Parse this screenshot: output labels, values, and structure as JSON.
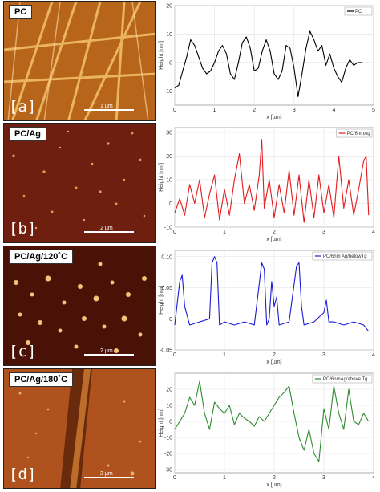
{
  "panels": [
    {
      "tag": "PC",
      "letter": "[a]",
      "scale_label": "1 µm",
      "afm_color": "#c0701f"
    },
    {
      "tag": "PC/Ag",
      "letter": "[b]",
      "scale_label": "2 µm",
      "afm_color": "#6e1f10"
    },
    {
      "tag": "PC/Ag/120˚C",
      "letter": "[c]",
      "scale_label": "2 µm",
      "afm_color": "#4a1207"
    },
    {
      "tag": "PC/Ag/180˚C",
      "letter": "[d]",
      "scale_label": "2 µm",
      "afm_color": "#b0521d"
    }
  ],
  "chart_data": [
    {
      "type": "line",
      "legend": "PC",
      "color": "#000000",
      "xlabel": "x [µm]",
      "ylabel": "Height [nm]",
      "xlim": [
        0,
        5
      ],
      "ylim": [
        -15,
        20
      ],
      "xticks": [
        0,
        1,
        2,
        3,
        4,
        5
      ],
      "yticks": [
        -10,
        0,
        10,
        20
      ],
      "x": [
        0,
        0.1,
        0.2,
        0.3,
        0.4,
        0.5,
        0.6,
        0.7,
        0.8,
        0.9,
        1.0,
        1.1,
        1.2,
        1.3,
        1.4,
        1.5,
        1.6,
        1.7,
        1.8,
        1.9,
        2.0,
        2.1,
        2.2,
        2.3,
        2.4,
        2.5,
        2.6,
        2.7,
        2.8,
        2.9,
        3.0,
        3.1,
        3.2,
        3.3,
        3.4,
        3.5,
        3.6,
        3.7,
        3.8,
        3.9,
        4.0,
        4.1,
        4.2,
        4.3,
        4.4,
        4.5,
        4.6,
        4.7
      ],
      "y": [
        -9,
        -8,
        -3,
        2,
        8,
        6,
        2,
        -2,
        -4,
        -3,
        0,
        4,
        6,
        3,
        -4,
        -6,
        0,
        7,
        9,
        5,
        -3,
        -2,
        4,
        8,
        4,
        -4,
        -6,
        -3,
        6,
        5,
        -2,
        -12,
        -4,
        5,
        11,
        8,
        4,
        6,
        -1,
        3,
        -2,
        -5,
        -7,
        -2,
        1,
        -1,
        0,
        0
      ]
    },
    {
      "type": "line",
      "legend": "PC/6nmAg",
      "color": "#e31a1c",
      "xlabel": "x [µm]",
      "ylabel": "Height [nm]",
      "xlim": [
        0,
        4
      ],
      "ylim": [
        -10,
        32
      ],
      "xticks": [
        0,
        1,
        2,
        3,
        4
      ],
      "yticks": [
        -10,
        0,
        10,
        20,
        30
      ],
      "x": [
        0,
        0.1,
        0.2,
        0.3,
        0.4,
        0.5,
        0.6,
        0.7,
        0.8,
        0.9,
        1.0,
        1.1,
        1.2,
        1.3,
        1.4,
        1.5,
        1.6,
        1.7,
        1.75,
        1.8,
        1.9,
        2.0,
        2.1,
        2.2,
        2.3,
        2.4,
        2.5,
        2.6,
        2.7,
        2.8,
        2.9,
        3.0,
        3.1,
        3.2,
        3.3,
        3.4,
        3.5,
        3.6,
        3.7,
        3.8,
        3.85,
        3.9
      ],
      "y": [
        -4,
        2,
        -5,
        8,
        0,
        10,
        -6,
        4,
        12,
        -7,
        6,
        -5,
        10,
        21,
        0,
        8,
        -3,
        12,
        27,
        -2,
        10,
        -6,
        8,
        -4,
        14,
        -5,
        12,
        -8,
        10,
        -6,
        12,
        -4,
        8,
        -6,
        20,
        -2,
        10,
        -5,
        6,
        18,
        20,
        -5
      ]
    },
    {
      "type": "line",
      "legend": "PC/6nm Ag/belowTg",
      "color": "#1a1ad6",
      "xlabel": "x [µm]",
      "ylabel": "Height [nm]",
      "xlim": [
        0,
        4
      ],
      "ylim": [
        -0.05,
        0.11
      ],
      "xticks": [
        0,
        1,
        2,
        3,
        4
      ],
      "yticks": [
        -0.05,
        0.0,
        0.05,
        0.1
      ],
      "x": [
        0,
        0.1,
        0.15,
        0.2,
        0.3,
        0.5,
        0.7,
        0.75,
        0.8,
        0.85,
        0.9,
        1.0,
        1.2,
        1.4,
        1.6,
        1.75,
        1.8,
        1.85,
        1.9,
        1.95,
        2.0,
        2.05,
        2.1,
        2.3,
        2.45,
        2.5,
        2.55,
        2.6,
        2.8,
        3.0,
        3.05,
        3.1,
        3.2,
        3.4,
        3.6,
        3.8,
        3.9
      ],
      "y": [
        -0.01,
        0.06,
        0.07,
        0.02,
        -0.01,
        -0.005,
        0.0,
        0.09,
        0.1,
        0.09,
        -0.01,
        -0.005,
        -0.01,
        -0.005,
        -0.01,
        0.09,
        0.08,
        -0.01,
        0.0,
        0.06,
        0.02,
        0.035,
        -0.01,
        -0.005,
        0.085,
        0.09,
        0.02,
        -0.01,
        -0.005,
        0.01,
        0.03,
        -0.005,
        -0.005,
        -0.01,
        -0.005,
        -0.01,
        -0.02
      ]
    },
    {
      "type": "line",
      "legend": "PC/6nmAg/above Tg",
      "color": "#2e8b2e",
      "xlabel": "x [µm]",
      "ylabel": "Height [nm]",
      "xlim": [
        0,
        4
      ],
      "ylim": [
        -32,
        30
      ],
      "xticks": [
        0,
        1,
        2,
        3,
        4
      ],
      "yticks": [
        -30,
        -20,
        -10,
        0,
        10,
        20
      ],
      "x": [
        0,
        0.1,
        0.2,
        0.3,
        0.4,
        0.5,
        0.6,
        0.7,
        0.8,
        0.9,
        1.0,
        1.1,
        1.2,
        1.3,
        1.4,
        1.5,
        1.6,
        1.7,
        1.8,
        1.9,
        2.0,
        2.1,
        2.2,
        2.3,
        2.4,
        2.5,
        2.6,
        2.7,
        2.8,
        2.9,
        3.0,
        3.1,
        3.2,
        3.3,
        3.4,
        3.5,
        3.6,
        3.7,
        3.8,
        3.9
      ],
      "y": [
        -5,
        0,
        5,
        15,
        10,
        25,
        5,
        -5,
        12,
        8,
        5,
        10,
        -2,
        5,
        2,
        0,
        -3,
        3,
        0,
        5,
        10,
        15,
        18,
        22,
        5,
        -10,
        -18,
        -5,
        -20,
        -25,
        8,
        -5,
        22,
        5,
        -5,
        20,
        0,
        -2,
        5,
        0
      ]
    }
  ]
}
